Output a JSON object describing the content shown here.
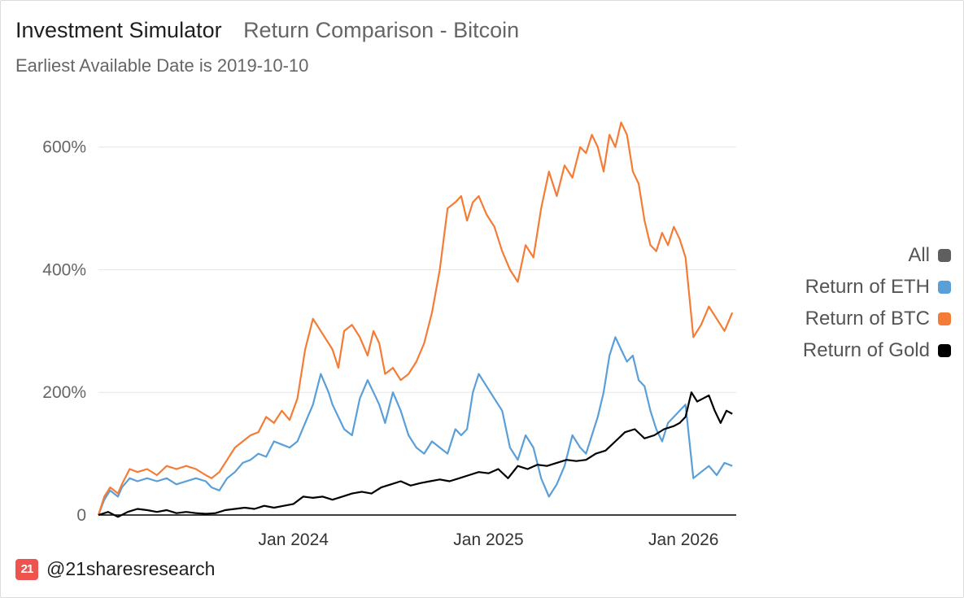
{
  "header": {
    "title": "Investment Simulator",
    "subtitle": "Return Comparison - Bitcoin",
    "note": "Earliest Available Date is 2019-10-10"
  },
  "legend": {
    "items": [
      {
        "label": "All",
        "color": "#5f5f5f"
      },
      {
        "label": "Return of ETH",
        "color": "#5a9fd8"
      },
      {
        "label": "Return of BTC",
        "color": "#f47c36"
      },
      {
        "label": "Return of Gold",
        "color": "#000000"
      }
    ]
  },
  "brand": {
    "logo_text": "21",
    "handle": "@21sharesresearch"
  },
  "chart_data": {
    "type": "line",
    "title": "Return Comparison - Bitcoin",
    "xlabel": "",
    "ylabel": "",
    "x_range": [
      2023.0,
      2026.27
    ],
    "ylim": [
      0,
      650
    ],
    "y_ticks": [
      {
        "value": 0,
        "label": "0"
      },
      {
        "value": 200,
        "label": "200%"
      },
      {
        "value": 400,
        "label": "400%"
      },
      {
        "value": 600,
        "label": "600%"
      }
    ],
    "x_ticks": [
      {
        "value": 2024.0,
        "label": "Jan 2024"
      },
      {
        "value": 2025.0,
        "label": "Jan 2025"
      },
      {
        "value": 2026.0,
        "label": "Jan 2026"
      }
    ],
    "grid": true,
    "series": [
      {
        "name": "Return of ETH",
        "color": "#5a9fd8",
        "x": [
          2023.0,
          2023.03,
          2023.06,
          2023.08,
          2023.1,
          2023.12,
          2023.16,
          2023.2,
          2023.25,
          2023.3,
          2023.35,
          2023.4,
          2023.45,
          2023.5,
          2023.55,
          2023.58,
          2023.62,
          2023.66,
          2023.7,
          2023.74,
          2023.78,
          2023.82,
          2023.86,
          2023.9,
          2023.94,
          2023.98,
          2024.02,
          2024.06,
          2024.1,
          2024.14,
          2024.18,
          2024.2,
          2024.23,
          2024.26,
          2024.3,
          2024.34,
          2024.38,
          2024.41,
          2024.44,
          2024.47,
          2024.51,
          2024.55,
          2024.59,
          2024.63,
          2024.67,
          2024.71,
          2024.75,
          2024.79,
          2024.83,
          2024.86,
          2024.89,
          2024.92,
          2024.95,
          2024.99,
          2025.03,
          2025.07,
          2025.11,
          2025.15,
          2025.19,
          2025.23,
          2025.27,
          2025.31,
          2025.35,
          2025.39,
          2025.43,
          2025.47,
          2025.5,
          2025.53,
          2025.56,
          2025.59,
          2025.62,
          2025.65,
          2025.68,
          2025.71,
          2025.74,
          2025.77,
          2025.8,
          2025.83,
          2025.86,
          2025.89,
          2025.92,
          2025.95,
          2025.98,
          2026.01,
          2026.05,
          2026.09,
          2026.13,
          2026.17,
          2026.21,
          2026.25
        ],
        "y": [
          0,
          25,
          40,
          35,
          30,
          45,
          60,
          55,
          60,
          55,
          60,
          50,
          55,
          60,
          55,
          45,
          40,
          60,
          70,
          85,
          90,
          100,
          95,
          120,
          115,
          110,
          120,
          150,
          180,
          230,
          200,
          180,
          160,
          140,
          130,
          190,
          220,
          200,
          180,
          150,
          200,
          170,
          130,
          110,
          100,
          120,
          110,
          100,
          140,
          130,
          140,
          200,
          230,
          210,
          190,
          170,
          110,
          90,
          130,
          110,
          60,
          30,
          50,
          80,
          130,
          110,
          100,
          130,
          160,
          200,
          260,
          290,
          270,
          250,
          260,
          220,
          210,
          170,
          140,
          120,
          150,
          160,
          170,
          180,
          60,
          70,
          80,
          65,
          85,
          80
        ]
      },
      {
        "name": "Return of BTC",
        "color": "#f47c36",
        "x": [
          2023.0,
          2023.03,
          2023.06,
          2023.08,
          2023.1,
          2023.12,
          2023.16,
          2023.2,
          2023.25,
          2023.3,
          2023.35,
          2023.4,
          2023.45,
          2023.5,
          2023.55,
          2023.58,
          2023.62,
          2023.66,
          2023.7,
          2023.74,
          2023.78,
          2023.82,
          2023.86,
          2023.9,
          2023.94,
          2023.98,
          2024.02,
          2024.06,
          2024.1,
          2024.14,
          2024.18,
          2024.2,
          2024.23,
          2024.26,
          2024.3,
          2024.34,
          2024.38,
          2024.41,
          2024.44,
          2024.47,
          2024.51,
          2024.55,
          2024.59,
          2024.63,
          2024.67,
          2024.71,
          2024.75,
          2024.79,
          2024.83,
          2024.86,
          2024.89,
          2024.92,
          2024.95,
          2024.99,
          2025.03,
          2025.07,
          2025.11,
          2025.15,
          2025.19,
          2025.23,
          2025.27,
          2025.31,
          2025.35,
          2025.39,
          2025.43,
          2025.47,
          2025.5,
          2025.53,
          2025.56,
          2025.59,
          2025.62,
          2025.65,
          2025.68,
          2025.71,
          2025.74,
          2025.77,
          2025.8,
          2025.83,
          2025.86,
          2025.89,
          2025.92,
          2025.95,
          2025.98,
          2026.01,
          2026.05,
          2026.09,
          2026.13,
          2026.17,
          2026.21,
          2026.25
        ],
        "y": [
          0,
          30,
          45,
          40,
          35,
          50,
          75,
          70,
          75,
          65,
          80,
          75,
          80,
          75,
          65,
          60,
          70,
          90,
          110,
          120,
          130,
          135,
          160,
          150,
          170,
          155,
          190,
          270,
          320,
          300,
          280,
          270,
          240,
          300,
          310,
          290,
          260,
          300,
          280,
          230,
          240,
          220,
          230,
          250,
          280,
          330,
          400,
          500,
          510,
          520,
          480,
          510,
          520,
          490,
          470,
          430,
          400,
          380,
          440,
          420,
          500,
          560,
          520,
          570,
          550,
          600,
          590,
          620,
          600,
          560,
          620,
          600,
          640,
          620,
          560,
          540,
          480,
          440,
          430,
          460,
          440,
          470,
          450,
          420,
          290,
          310,
          340,
          320,
          300,
          330
        ]
      },
      {
        "name": "Return of Gold",
        "color": "#000000",
        "x": [
          2023.0,
          2023.05,
          2023.1,
          2023.15,
          2023.2,
          2023.25,
          2023.3,
          2023.35,
          2023.4,
          2023.45,
          2023.5,
          2023.55,
          2023.6,
          2023.65,
          2023.7,
          2023.75,
          2023.8,
          2023.85,
          2023.9,
          2023.95,
          2024.0,
          2024.05,
          2024.1,
          2024.15,
          2024.2,
          2024.25,
          2024.3,
          2024.35,
          2024.4,
          2024.45,
          2024.5,
          2024.55,
          2024.6,
          2024.65,
          2024.7,
          2024.75,
          2024.8,
          2024.85,
          2024.9,
          2024.95,
          2025.0,
          2025.05,
          2025.1,
          2025.15,
          2025.2,
          2025.25,
          2025.3,
          2025.35,
          2025.4,
          2025.45,
          2025.5,
          2025.55,
          2025.6,
          2025.65,
          2025.7,
          2025.75,
          2025.8,
          2025.85,
          2025.9,
          2025.95,
          2025.98,
          2026.01,
          2026.04,
          2026.07,
          2026.1,
          2026.13,
          2026.16,
          2026.19,
          2026.22,
          2026.25
        ],
        "y": [
          0,
          5,
          -3,
          5,
          10,
          8,
          5,
          8,
          3,
          5,
          3,
          2,
          3,
          8,
          10,
          12,
          10,
          15,
          12,
          15,
          18,
          30,
          28,
          30,
          25,
          30,
          35,
          38,
          35,
          45,
          50,
          55,
          48,
          52,
          55,
          58,
          55,
          60,
          65,
          70,
          68,
          75,
          60,
          80,
          75,
          82,
          80,
          85,
          90,
          88,
          90,
          100,
          105,
          120,
          135,
          140,
          125,
          130,
          140,
          145,
          150,
          160,
          200,
          185,
          190,
          195,
          170,
          150,
          170,
          165
        ]
      }
    ]
  }
}
